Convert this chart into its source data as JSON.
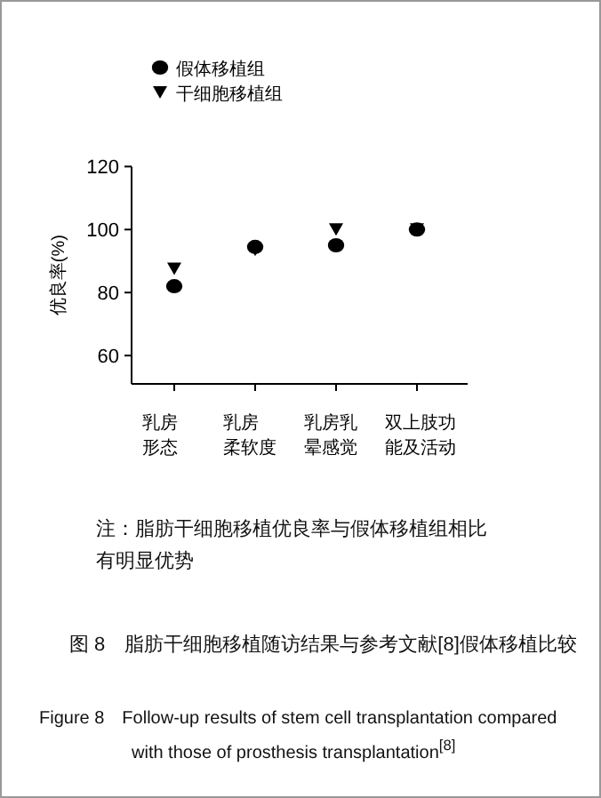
{
  "chart_data": {
    "type": "scatter",
    "categories": [
      "乳房形态",
      "乳房柔软度",
      "乳房乳晕感觉",
      "双上肢功能及活动"
    ],
    "series": [
      {
        "name": "假体移植组",
        "color": "#000000",
        "marker": "circle",
        "values": [
          82,
          94.5,
          95,
          100
        ]
      },
      {
        "name": "干细胞移植组",
        "color": "#000000",
        "marker": "triangle",
        "values": [
          87.5,
          93.5,
          100,
          100
        ]
      }
    ],
    "ylabel": "优良率(%)",
    "ylim": [
      51,
      120
    ],
    "yticks": [
      60,
      80,
      100,
      120
    ],
    "grid": false,
    "legend": "top",
    "annotations": [
      "注：脂肪干细胞移植优良率与假体移植组相比有明显优势",
      "Figure 8　Follow-up results of stem cell transplantation compared with those of prosthesis transplantation$^{[8]}$"
    ],
    "title": "图 8　脂肪干细胞移植随访结果与参考文献[8]假体移植比较"
  }
}
